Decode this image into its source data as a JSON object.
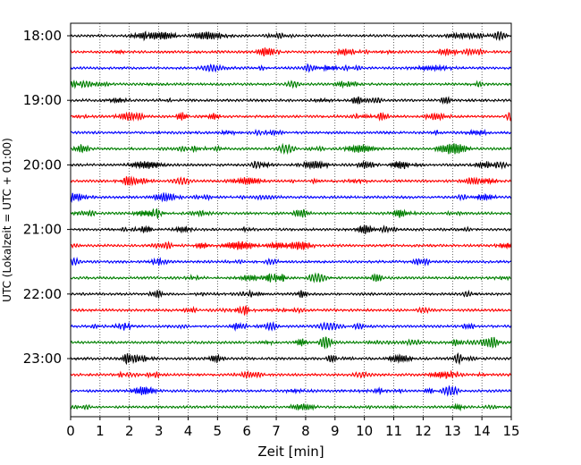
{
  "chart_data": {
    "type": "line",
    "title": "",
    "xlabel": "Zeit  [min]",
    "ylabel": "UTC (Lokalzeit = UTC + 01:00)",
    "xlim": [
      0,
      15
    ],
    "x_ticks": [
      "0",
      "1",
      "2",
      "3",
      "4",
      "5",
      "6",
      "7",
      "8",
      "9",
      "10",
      "11",
      "12",
      "13",
      "14",
      "15"
    ],
    "y_tick_labels": [
      "18:00",
      "19:00",
      "20:00",
      "21:00",
      "22:00",
      "23:00"
    ],
    "y_tick_trace_index": [
      0,
      4,
      8,
      12,
      16,
      20
    ],
    "grid_vertical": true,
    "grid_style": "dotted",
    "trace_interval_minutes": 15,
    "trace_colors": [
      "#000000",
      "#ff0000",
      "#0000ff",
      "#008000"
    ],
    "trace_start_times": [
      "18:00",
      "18:15",
      "18:30",
      "18:45",
      "19:00",
      "19:15",
      "19:30",
      "19:45",
      "20:00",
      "20:15",
      "20:30",
      "20:45",
      "21:00",
      "21:15",
      "21:30",
      "21:45",
      "22:00",
      "22:15",
      "22:30",
      "22:45",
      "23:00",
      "23:15",
      "23:30",
      "23:45"
    ]
  }
}
